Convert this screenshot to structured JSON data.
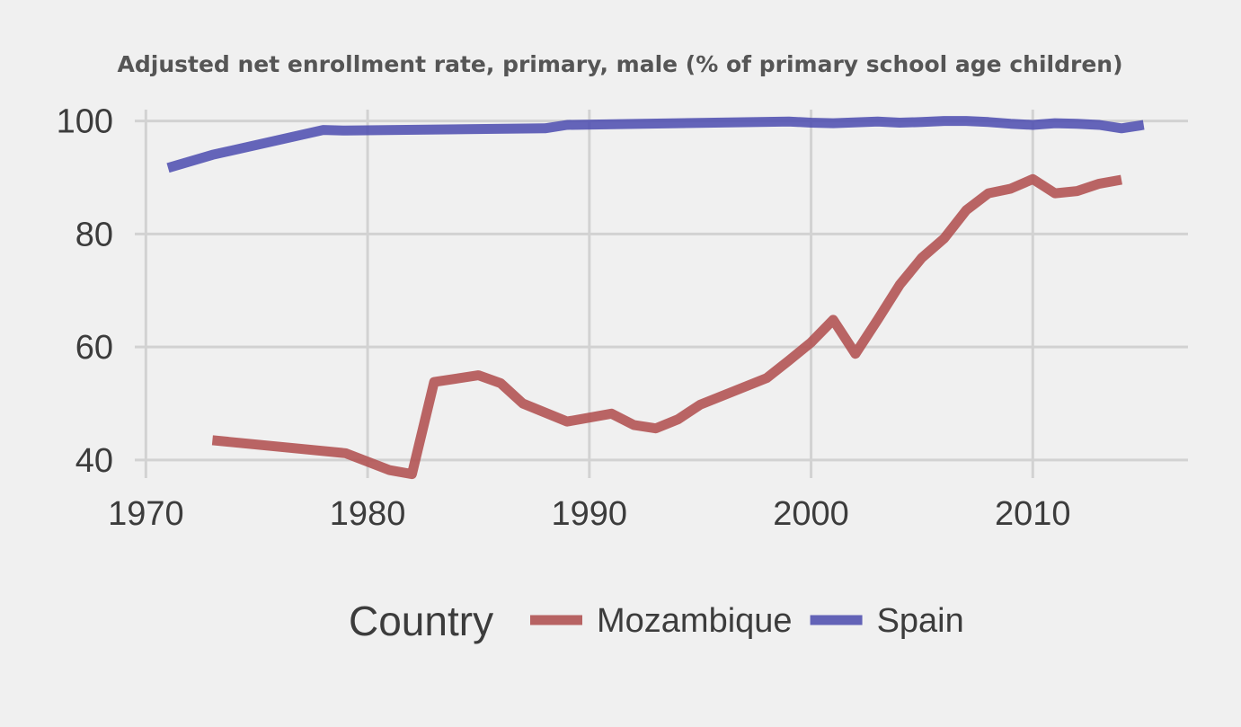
{
  "chart_data": {
    "type": "line",
    "title": "Adjusted net enrollment rate, primary, male (% of primary school age children)",
    "xlabel": "",
    "ylabel": "",
    "xlim": [
      1969.5,
      2017
    ],
    "ylim": [
      36.8,
      102
    ],
    "x_ticks": [
      1970,
      1980,
      1990,
      2000,
      2010
    ],
    "y_ticks": [
      40,
      60,
      80,
      100
    ],
    "grid": true,
    "legend": {
      "title": "Country",
      "placement": "bottom"
    },
    "series": [
      {
        "name": "Mozambique",
        "color": "#b05050",
        "x": [
          1973,
          1979,
          1981,
          1982,
          1983,
          1985,
          1986,
          1987,
          1989,
          1991,
          1992,
          1993,
          1994,
          1995,
          1998,
          1999,
          2000,
          2001,
          2002,
          2003,
          2004,
          2005,
          2006,
          2007,
          2008,
          2009,
          2010,
          2011,
          2012,
          2013,
          2014
        ],
        "y": [
          43.5,
          41.2,
          38.2,
          37.5,
          53.8,
          55.0,
          53.6,
          50.0,
          46.8,
          48.2,
          46.2,
          45.6,
          47.2,
          49.8,
          54.5,
          57.6,
          60.8,
          64.8,
          58.8,
          64.8,
          71.0,
          75.8,
          79.2,
          84.2,
          87.2,
          88.0,
          89.7,
          87.2,
          87.6,
          88.9,
          89.6
        ]
      },
      {
        "name": "Spain",
        "color": "#5050b0",
        "x": [
          1971,
          1973,
          1978,
          1979,
          1988,
          1989,
          1999,
          2000,
          2001,
          2003,
          2004,
          2005,
          2006,
          2007,
          2008,
          2009,
          2010,
          2011,
          2012,
          2013,
          2014,
          2015
        ],
        "y": [
          91.7,
          94.0,
          98.4,
          98.3,
          98.7,
          99.3,
          99.9,
          99.7,
          99.6,
          99.9,
          99.7,
          99.8,
          100.0,
          100.0,
          99.8,
          99.5,
          99.3,
          99.6,
          99.5,
          99.3,
          98.7,
          99.3
        ]
      }
    ]
  }
}
